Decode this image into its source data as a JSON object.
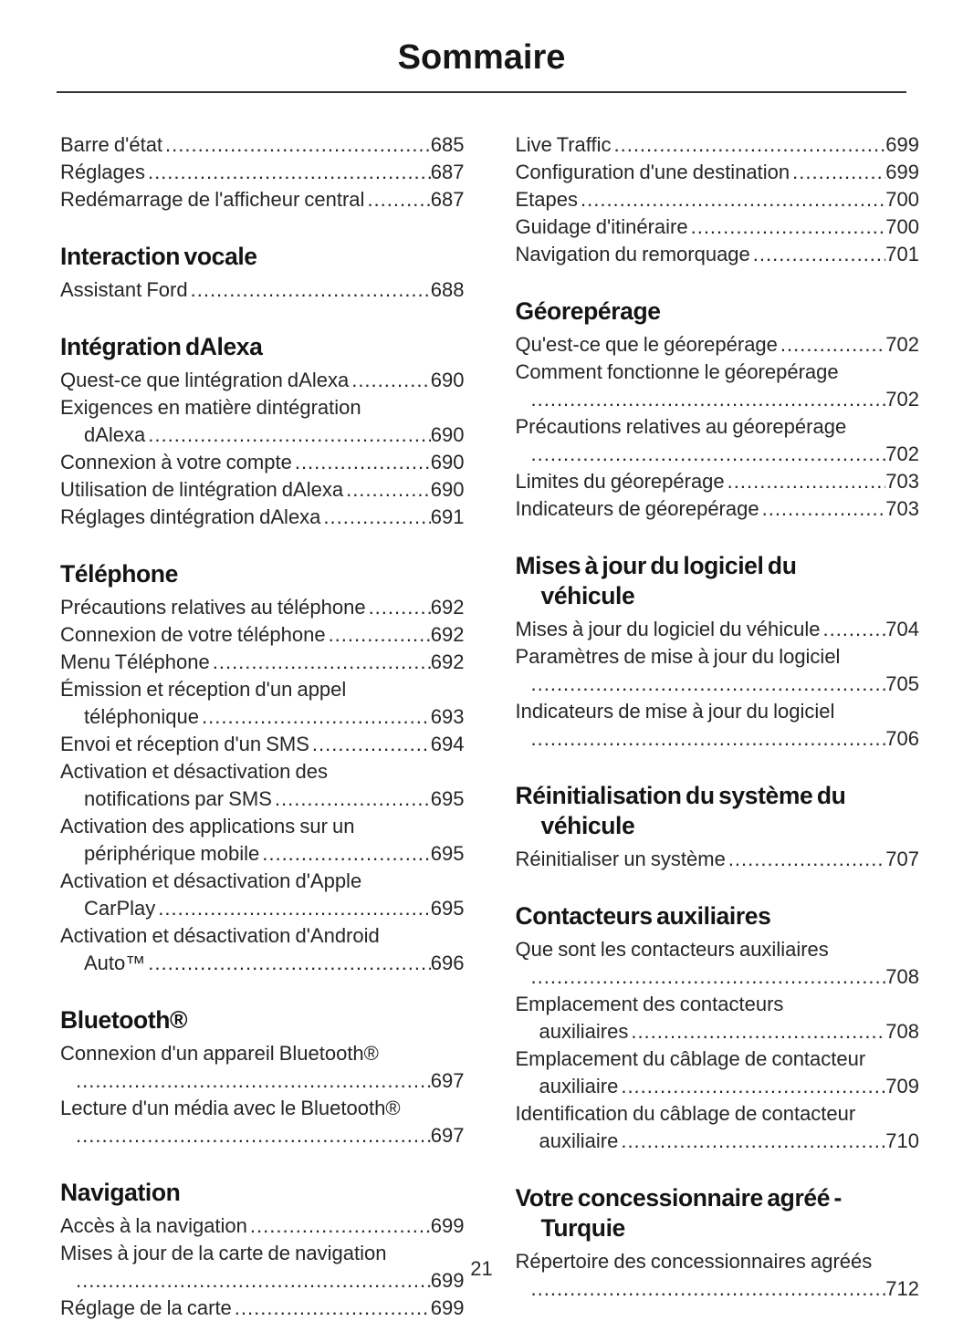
{
  "title": "Sommaire",
  "page_number": "21",
  "columns": {
    "left": [
      {
        "heading": null,
        "entries": [
          {
            "text": "Barre d'état",
            "page": "685"
          },
          {
            "text": "Réglages",
            "page": "687"
          },
          {
            "text": "Redémarrage de l'afficheur central",
            "page": "687"
          }
        ]
      },
      {
        "heading": [
          "Interaction vocale"
        ],
        "entries": [
          {
            "text": "Assistant Ford",
            "page": "688"
          }
        ]
      },
      {
        "heading": [
          "Intégration dAlexa"
        ],
        "entries": [
          {
            "text": "Quest-ce que lintégration dAlexa",
            "page": "690"
          },
          {
            "text": "Exigences en matière dintégration",
            "cont": "dAlexa",
            "page": "690"
          },
          {
            "text": "Connexion à votre compte",
            "page": "690"
          },
          {
            "text": "Utilisation de lintégration dAlexa",
            "page": "690"
          },
          {
            "text": "Réglages dintégration dAlexa",
            "page": "691"
          }
        ]
      },
      {
        "heading": [
          "Téléphone"
        ],
        "entries": [
          {
            "text": "Précautions relatives au téléphone",
            "page": "692"
          },
          {
            "text": "Connexion de votre téléphone",
            "page": "692"
          },
          {
            "text": "Menu Téléphone",
            "page": "692"
          },
          {
            "text": "Émission et réception d'un appel",
            "cont": "téléphonique",
            "page": "693"
          },
          {
            "text": "Envoi et réception d'un SMS",
            "page": "694"
          },
          {
            "text": "Activation et désactivation des",
            "cont": "notifications par SMS",
            "page": "695"
          },
          {
            "text": "Activation des applications sur un",
            "cont": "périphérique mobile",
            "page": "695"
          },
          {
            "text": "Activation et désactivation d'Apple",
            "cont": "CarPlay",
            "page": "695"
          },
          {
            "text": "Activation et désactivation d'Android",
            "cont": "Auto™",
            "page": "696"
          }
        ]
      },
      {
        "heading": [
          "Bluetooth®"
        ],
        "entries": [
          {
            "text": "Connexion d'un appareil Bluetooth®",
            "cont": "",
            "page": "697"
          },
          {
            "text": "Lecture d'un média avec le Bluetooth®",
            "cont": "",
            "page": "697"
          }
        ]
      },
      {
        "heading": [
          "Navigation"
        ],
        "entries": [
          {
            "text": "Accès à la navigation",
            "page": "699"
          },
          {
            "text": "Mises à jour de la carte de navigation",
            "cont": "",
            "page": "699"
          },
          {
            "text": "Réglage de la carte",
            "page": "699"
          }
        ]
      }
    ],
    "right": [
      {
        "heading": null,
        "entries": [
          {
            "text": "Live Traffic",
            "page": "699"
          },
          {
            "text": "Configuration d'une destination",
            "page": "699"
          },
          {
            "text": "Etapes",
            "page": "700"
          },
          {
            "text": "Guidage d'itinéraire",
            "page": "700"
          },
          {
            "text": "Navigation du remorquage",
            "page": "701"
          }
        ]
      },
      {
        "heading": [
          "Géorepérage"
        ],
        "entries": [
          {
            "text": "Qu'est-ce que le géorepérage",
            "page": "702"
          },
          {
            "text": "Comment fonctionne le géorepérage",
            "cont": "",
            "page": "702"
          },
          {
            "text": "Précautions relatives au géorepérage",
            "cont": "",
            "page": "702"
          },
          {
            "text": "Limites du géorepérage",
            "page": "703"
          },
          {
            "text": "Indicateurs de géorepérage",
            "page": "703"
          }
        ]
      },
      {
        "heading": [
          "Mises à jour du logiciel du",
          "véhicule"
        ],
        "entries": [
          {
            "text": "Mises à jour du logiciel du véhicule",
            "page": "704"
          },
          {
            "text": "Paramètres de mise à jour du logiciel",
            "cont": "",
            "page": "705"
          },
          {
            "text": "Indicateurs de mise à jour du logiciel",
            "cont": "",
            "page": "706"
          }
        ]
      },
      {
        "heading": [
          "Réinitialisation du système du",
          "véhicule"
        ],
        "entries": [
          {
            "text": "Réinitialiser un système",
            "page": "707"
          }
        ]
      },
      {
        "heading": [
          "Contacteurs auxiliaires"
        ],
        "entries": [
          {
            "text": "Que sont les contacteurs auxiliaires",
            "cont": "",
            "page": "708"
          },
          {
            "text": "Emplacement des contacteurs",
            "cont": "auxiliaires",
            "page": "708"
          },
          {
            "text": "Emplacement du câblage de contacteur",
            "cont": "auxiliaire",
            "page": "709"
          },
          {
            "text": "Identification du câblage de contacteur",
            "cont": "auxiliaire",
            "page": "710"
          }
        ]
      },
      {
        "heading": [
          "Votre concessionnaire agréé -",
          "Turquie"
        ],
        "entries": [
          {
            "text": "Répertoire des concessionnaires agréés",
            "cont": "",
            "page": "712"
          }
        ]
      }
    ]
  }
}
